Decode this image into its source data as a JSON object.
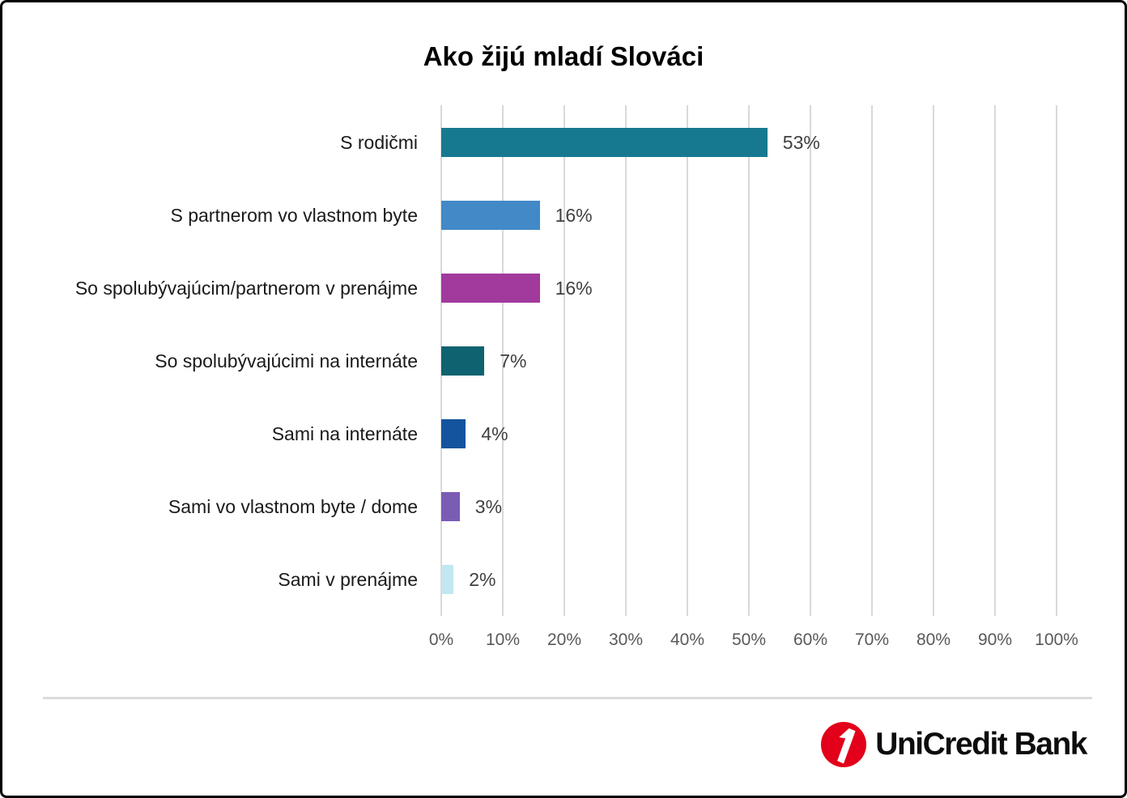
{
  "chart_data": {
    "type": "bar",
    "orientation": "horizontal",
    "title": "Ako žijú mladí Slováci",
    "categories": [
      "S rodičmi",
      "S partnerom vo vlastnom byte",
      "So spolubývajúcim/partnerom v prenájme",
      "So spolubývajúcimi na internáte",
      "Sami na internáte",
      "Sami vo vlastnom byte / dome",
      "Sami v prenájme"
    ],
    "values": [
      53,
      16,
      16,
      7,
      4,
      3,
      2
    ],
    "value_labels": [
      "53%",
      "16%",
      "16%",
      "7%",
      "4%",
      "3%",
      "2%"
    ],
    "bar_colors": [
      "#17798F",
      "#4189C7",
      "#A23A9E",
      "#0F6270",
      "#14549E",
      "#7B5CB5",
      "#C3E7F1"
    ],
    "x_ticks": [
      "0%",
      "10%",
      "20%",
      "30%",
      "40%",
      "50%",
      "60%",
      "70%",
      "80%",
      "90%",
      "100%"
    ],
    "xlim": [
      0,
      100
    ],
    "grid": "vertical",
    "gridline_color": "#D9D9D9",
    "tick_label_color": "#595959",
    "value_label_color": "#404040",
    "xlabel": "",
    "ylabel": "",
    "legend": "none"
  },
  "footer": {
    "divider_color": "#DBDBDB",
    "logo_text": "UniCredit Bank",
    "logo_mark": "unicredit-1-mark",
    "logo_red": "#E2001A"
  }
}
